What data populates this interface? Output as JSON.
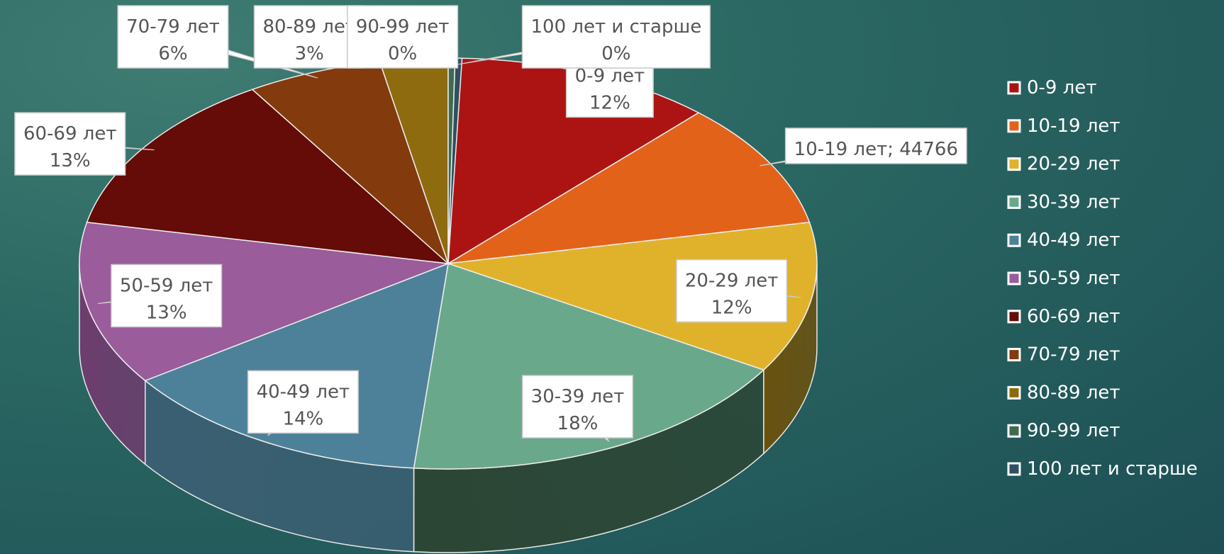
{
  "chart_data": {
    "type": "pie",
    "style": "3d",
    "legend_position": "right",
    "slices": [
      {
        "name": "0-9 лет",
        "percent": 12,
        "color": "#ac1414",
        "side_color": "#6e0e0e",
        "label_line1": "0-9 лет",
        "label_line2": "12%"
      },
      {
        "name": "10-19 лет",
        "percent": 10,
        "value": 44766,
        "color": "#e3621a",
        "side_color": "#8e3c0f",
        "label_line1": "10-19 лет; 44766",
        "label_line2": ""
      },
      {
        "name": "20-29 лет",
        "percent": 12,
        "color": "#e0b22c",
        "side_color": "#6a5210",
        "label_line1": "20-29 лет",
        "label_line2": "12%"
      },
      {
        "name": "30-39 лет",
        "percent": 18,
        "color": "#6aa88c",
        "side_color": "#2c4635",
        "label_line1": "30-39 лет",
        "label_line2": "18%"
      },
      {
        "name": "40-49 лет",
        "percent": 14,
        "color": "#4d8199",
        "side_color": "#3a5f72",
        "label_line1": "40-49 лет",
        "label_line2": "14%"
      },
      {
        "name": "50-59 лет",
        "percent": 13,
        "color": "#9a5c9b",
        "side_color": "#6d3d6e",
        "label_line1": "50-59 лет",
        "label_line2": "13%"
      },
      {
        "name": "60-69 лет",
        "percent": 13,
        "color": "#650b08",
        "side_color": "#3e0705",
        "label_line1": "60-69 лет",
        "label_line2": "13%"
      },
      {
        "name": "70-79 лет",
        "percent": 6,
        "color": "#833a0d",
        "side_color": "#4e2208",
        "label_line1": "70-79 лет",
        "label_line2": "6%"
      },
      {
        "name": "80-89 лет",
        "percent": 3,
        "color": "#8f6b10",
        "side_color": "#55400a",
        "label_line1": "80-89 лет",
        "label_line2": "3%"
      },
      {
        "name": "90-99 лет",
        "percent": 0,
        "color": "#3f6a4e",
        "side_color": "#2a4634",
        "label_line1": "90-99 лет",
        "label_line2": "0%"
      },
      {
        "name": "100 лет и старше",
        "percent": 0,
        "color": "#2f4f62",
        "side_color": "#203645",
        "label_line1": "100 лет и старше",
        "label_line2": "0%"
      }
    ]
  }
}
